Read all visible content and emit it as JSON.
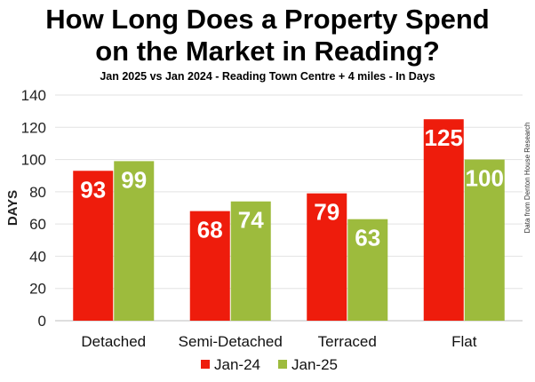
{
  "chart_data": {
    "type": "bar",
    "title_line1": "How Long Does a Property Spend",
    "title_line2": "on the Market in Reading?",
    "subtitle": "Jan 2025 vs Jan 2024 - Reading Town Centre + 4 miles - In Days",
    "ylabel": "DAYS",
    "source_note": "Data from Denton House Research",
    "categories": [
      "Detached",
      "Semi-Detached",
      "Terraced",
      "Flat"
    ],
    "series": [
      {
        "name": "Jan-24",
        "color": "#ee1c0c",
        "values": [
          93,
          68,
          79,
          125
        ]
      },
      {
        "name": "Jan-25",
        "color": "#9dbb3d",
        "values": [
          99,
          74,
          63,
          100
        ]
      }
    ],
    "ylim": [
      0,
      140
    ],
    "yticks": [
      0,
      20,
      40,
      60,
      80,
      100,
      120,
      140
    ],
    "grid": true,
    "legend_position": "bottom"
  }
}
